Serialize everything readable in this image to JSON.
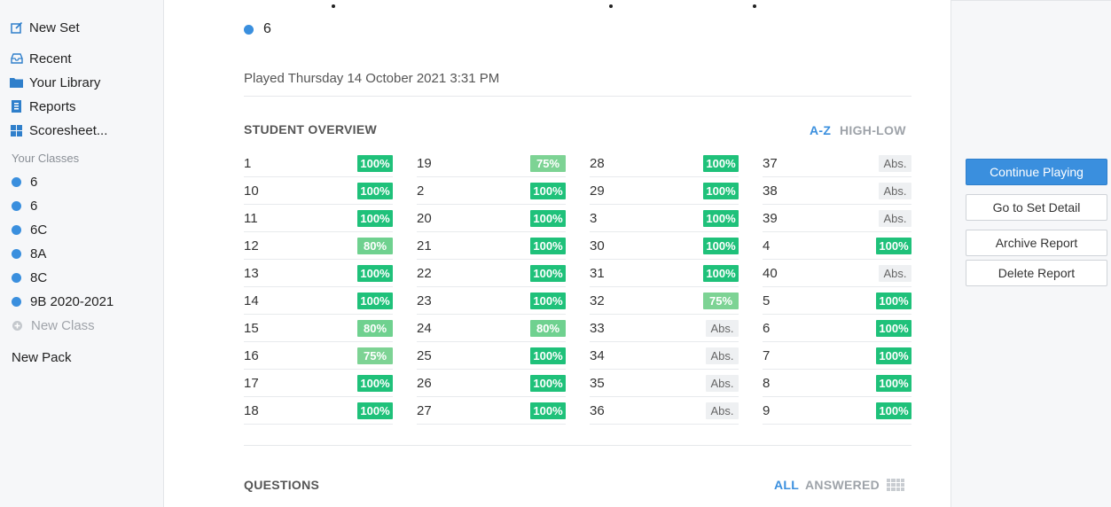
{
  "sidebar": {
    "new_set": "New Set",
    "recent": "Recent",
    "library": "Your Library",
    "reports": "Reports",
    "scoresheet": "Scoresheet...",
    "classes_header": "Your Classes",
    "classes": [
      "6",
      "6",
      "6C",
      "8A",
      "8C",
      "9B 2020-2021"
    ],
    "new_class": "New Class",
    "new_pack": "New Pack",
    "class_color": "#3a8fde"
  },
  "report": {
    "legend_label": "6",
    "played": "Played Thursday 14 October 2021 3:31 PM",
    "overview_title": "STUDENT OVERVIEW",
    "sort_az": "A-Z",
    "sort_high_low": "HIGH-LOW",
    "questions_title": "QUESTIONS",
    "filter_all": "ALL",
    "filter_answered": "ANSWERED"
  },
  "students": [
    [
      {
        "name": "1",
        "score": "100%"
      },
      {
        "name": "10",
        "score": "100%"
      },
      {
        "name": "11",
        "score": "100%"
      },
      {
        "name": "12",
        "score": "80%"
      },
      {
        "name": "13",
        "score": "100%"
      },
      {
        "name": "14",
        "score": "100%"
      },
      {
        "name": "15",
        "score": "80%"
      },
      {
        "name": "16",
        "score": "75%"
      },
      {
        "name": "17",
        "score": "100%"
      },
      {
        "name": "18",
        "score": "100%"
      }
    ],
    [
      {
        "name": "19",
        "score": "75%"
      },
      {
        "name": "2",
        "score": "100%"
      },
      {
        "name": "20",
        "score": "100%"
      },
      {
        "name": "21",
        "score": "100%"
      },
      {
        "name": "22",
        "score": "100%"
      },
      {
        "name": "23",
        "score": "100%"
      },
      {
        "name": "24",
        "score": "80%"
      },
      {
        "name": "25",
        "score": "100%"
      },
      {
        "name": "26",
        "score": "100%"
      },
      {
        "name": "27",
        "score": "100%"
      }
    ],
    [
      {
        "name": "28",
        "score": "100%"
      },
      {
        "name": "29",
        "score": "100%"
      },
      {
        "name": "3",
        "score": "100%"
      },
      {
        "name": "30",
        "score": "100%"
      },
      {
        "name": "31",
        "score": "100%"
      },
      {
        "name": "32",
        "score": "75%"
      },
      {
        "name": "33",
        "score": "Abs."
      },
      {
        "name": "34",
        "score": "Abs."
      },
      {
        "name": "35",
        "score": "Abs."
      },
      {
        "name": "36",
        "score": "Abs."
      }
    ],
    [
      {
        "name": "37",
        "score": "Abs."
      },
      {
        "name": "38",
        "score": "Abs."
      },
      {
        "name": "39",
        "score": "Abs."
      },
      {
        "name": "4",
        "score": "100%"
      },
      {
        "name": "40",
        "score": "Abs."
      },
      {
        "name": "5",
        "score": "100%"
      },
      {
        "name": "6",
        "score": "100%"
      },
      {
        "name": "7",
        "score": "100%"
      },
      {
        "name": "8",
        "score": "100%"
      },
      {
        "name": "9",
        "score": "100%"
      }
    ]
  ],
  "actions": {
    "continue": "Continue Playing",
    "set_detail": "Go to Set Detail",
    "archive": "Archive Report",
    "delete": "Delete Report"
  },
  "colors": {
    "accent": "#3a8fde",
    "score_full": "#1fc17a",
    "score_partial": "#6fd18f",
    "absent_bg": "#eef0f2"
  }
}
